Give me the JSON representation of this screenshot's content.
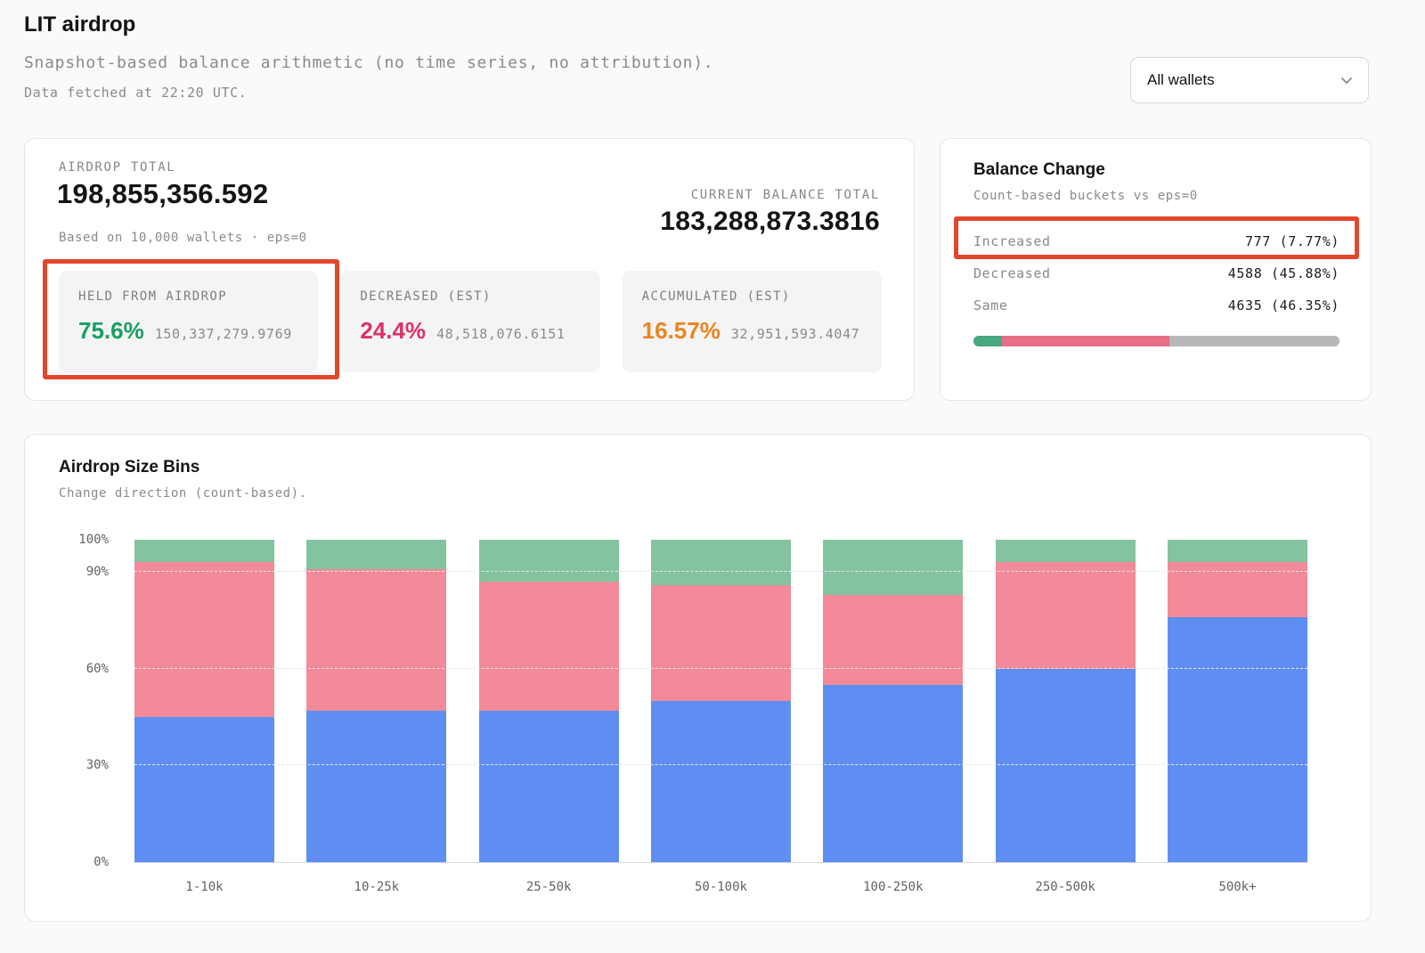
{
  "header": {
    "title": "LIT airdrop",
    "subtitle": "Snapshot-based balance arithmetic (no time series, no attribution).",
    "fetched": "Data fetched at 22:20 UTC.",
    "wallet_filter": {
      "value": "All wallets"
    }
  },
  "summary": {
    "airdrop_total_label": "AIRDROP TOTAL",
    "airdrop_total_value": "198,855,356.592",
    "airdrop_total_sub": "Based on 10,000 wallets · eps=0",
    "current_balance_label": "CURRENT BALANCE TOTAL",
    "current_balance_value": "183,288,873.3816",
    "stats": [
      {
        "label": "HELD FROM AIRDROP",
        "pct": "75.6%",
        "value": "150,337,279.9769",
        "color": "#18a060"
      },
      {
        "label": "DECREASED (EST)",
        "pct": "24.4%",
        "value": "48,518,076.6151",
        "color": "#df3166"
      },
      {
        "label": "ACCUMULATED (EST)",
        "pct": "16.57%",
        "value": "32,951,593.4047",
        "color": "#ec8420"
      }
    ]
  },
  "balance_change": {
    "title": "Balance Change",
    "subtitle": "Count-based buckets vs eps=0",
    "rows": [
      {
        "label": "Increased",
        "value": "777 (7.77%)",
        "pct": 7.77,
        "color": "#48a87f"
      },
      {
        "label": "Decreased",
        "value": "4588 (45.88%)",
        "pct": 45.88,
        "color": "#e66e86"
      },
      {
        "label": "Same",
        "value": "4635 (46.35%)",
        "pct": 46.35,
        "color": "#b8b8b8"
      }
    ]
  },
  "chart_data": {
    "type": "bar",
    "stacked": true,
    "percent_stacked": true,
    "title": "Airdrop Size Bins",
    "subtitle": "Change direction (count-based).",
    "categories": [
      "1-10k",
      "10-25k",
      "25-50k",
      "50-100k",
      "100-250k",
      "250-500k",
      "500k+"
    ],
    "series": [
      {
        "name": "same",
        "color": "#5f8ef3",
        "values": [
          45,
          47,
          47,
          50,
          55,
          60,
          76
        ]
      },
      {
        "name": "decreased",
        "color": "#f28a99",
        "values": [
          48,
          44,
          40,
          36,
          28,
          33,
          17
        ]
      },
      {
        "name": "increased",
        "color": "#83c3a0",
        "values": [
          7,
          9,
          13,
          14,
          17,
          7,
          7
        ]
      }
    ],
    "ylim": [
      0,
      100
    ],
    "yticks": [
      {
        "value": 100,
        "label": "100%"
      },
      {
        "value": 90,
        "label": "90%"
      },
      {
        "value": 60,
        "label": "60%"
      },
      {
        "value": 30,
        "label": "30%"
      },
      {
        "value": 0,
        "label": "0%"
      }
    ],
    "gridlines": [
      30,
      60,
      90
    ],
    "legend": "none"
  },
  "annotations": {
    "color": "#e2472b",
    "boxes": [
      "held-from-airdrop-stat",
      "increased-row"
    ]
  }
}
